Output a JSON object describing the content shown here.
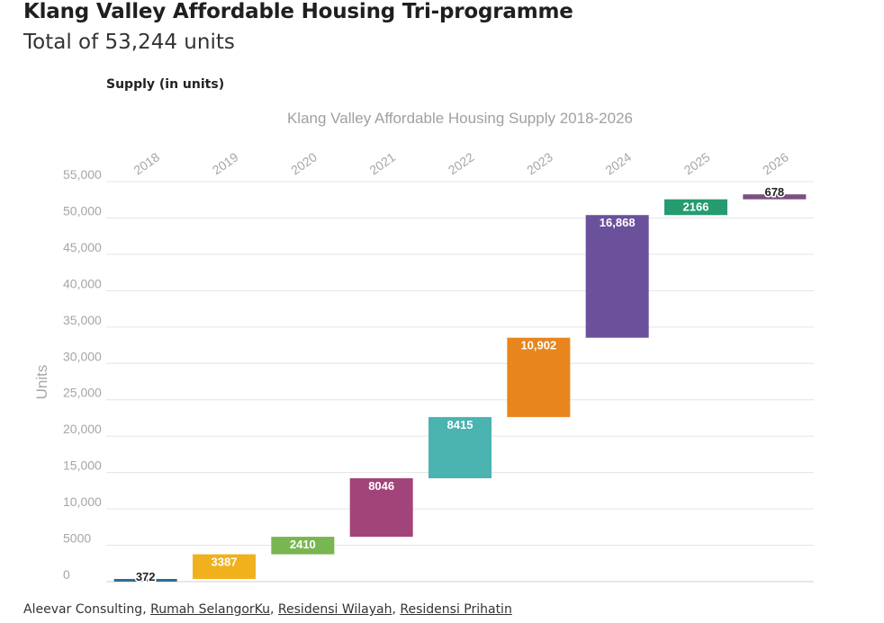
{
  "header": {
    "title": "Klang Valley Affordable Housing Tri-programme",
    "subtitle": "Total of 53,244 units",
    "section_label": "Supply (in units)"
  },
  "footer": {
    "source_text": "Aleevar Consulting",
    "sep": ", ",
    "links": [
      "Rumah SelangorKu",
      "Residensi Wilayah",
      "Residensi Prihatin"
    ]
  },
  "chart_data": {
    "type": "bar",
    "subtype": "waterfall",
    "title": "Klang Valley Affordable Housing Supply 2018-2026",
    "xlabel": "",
    "ylabel": "Units",
    "x_axis_position": "top",
    "x_tick_rotation": -35,
    "ylim": [
      0,
      55000
    ],
    "y_ticks": [
      0,
      5000,
      10000,
      15000,
      20000,
      25000,
      30000,
      35000,
      40000,
      45000,
      50000,
      55000
    ],
    "y_tick_labels": [
      "0",
      "5000",
      "10,000",
      "15,000",
      "20,000",
      "25,000",
      "30,000",
      "35,000",
      "40,000",
      "45,000",
      "50,000",
      "55,000"
    ],
    "grid": true,
    "legend": "none",
    "categories": [
      "2018",
      "2019",
      "2020",
      "2021",
      "2022",
      "2023",
      "2024",
      "2025",
      "2026"
    ],
    "values": [
      372,
      3387,
      2410,
      8046,
      8415,
      10902,
      16868,
      2166,
      678
    ],
    "value_labels": [
      "372",
      "3387",
      "2410",
      "8046",
      "8415",
      "10,902",
      "16,868",
      "2166",
      "678"
    ],
    "colors": [
      "#2e6e96",
      "#f0b11d",
      "#78b651",
      "#a2447a",
      "#4bb3b0",
      "#e8851c",
      "#6b519c",
      "#259b70",
      "#7b4f80"
    ],
    "label_colors": [
      "#222222",
      "#ffffff",
      "#ffffff",
      "#ffffff",
      "#ffffff",
      "#ffffff",
      "#ffffff",
      "#ffffff",
      "#222222"
    ]
  }
}
